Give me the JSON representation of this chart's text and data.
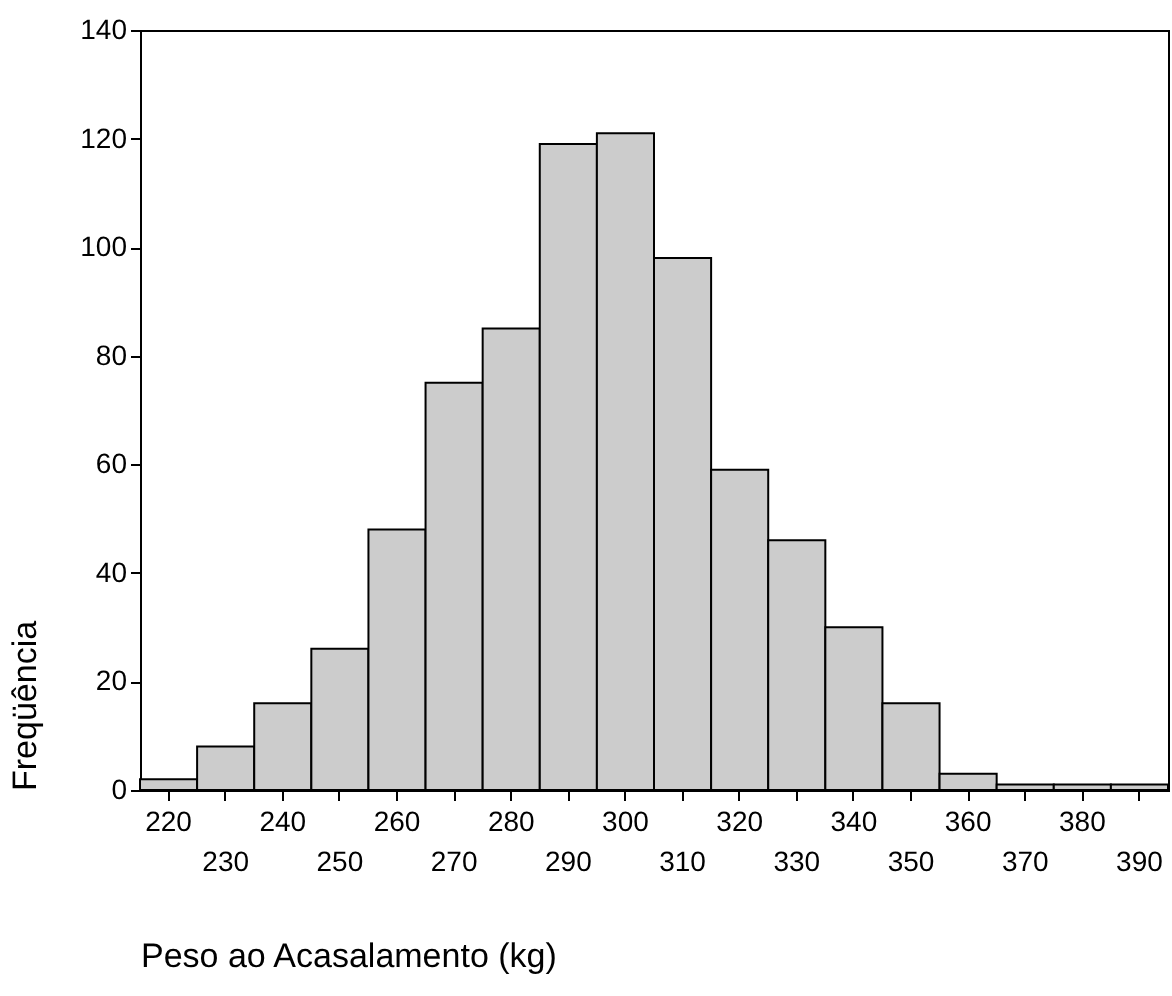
{
  "chart_data": {
    "type": "bar",
    "xlabel": "Peso ao Acasalamento (kg)",
    "ylabel": "Freqüência",
    "categories": [
      "220",
      "230",
      "240",
      "250",
      "260",
      "270",
      "280",
      "290",
      "300",
      "310",
      "320",
      "330",
      "340",
      "350",
      "360",
      "370",
      "380",
      "390"
    ],
    "values": [
      2,
      8,
      16,
      26,
      48,
      75,
      85,
      119,
      121,
      98,
      59,
      46,
      30,
      16,
      3,
      1,
      1,
      1
    ],
    "color": "#cccccc",
    "ylim": [
      0,
      140
    ],
    "yticks": [
      0,
      20,
      40,
      60,
      80,
      100,
      120,
      140
    ],
    "grid": false
  }
}
